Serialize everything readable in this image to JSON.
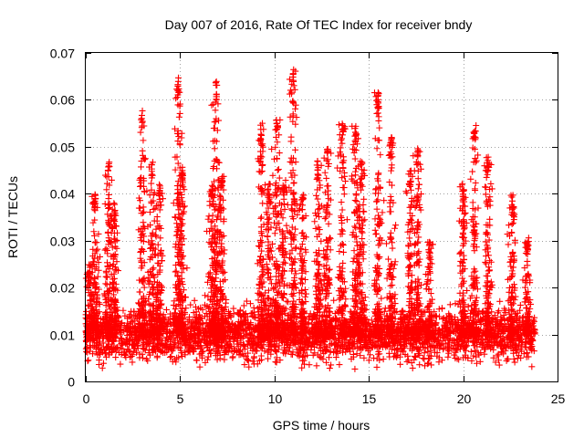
{
  "chart_data": {
    "type": "scatter",
    "title": "Day 007 of 2016, Rate Of TEC Index for receiver bndy",
    "xlabel": "GPS time / hours",
    "ylabel": "ROTI / TECUs",
    "xlim": [
      0,
      25
    ],
    "ylim": [
      0,
      0.07
    ],
    "xticks": [
      0,
      5,
      10,
      15,
      20,
      25
    ],
    "yticks": [
      0,
      0.01,
      0.02,
      0.03,
      0.04,
      0.05,
      0.06,
      0.07
    ],
    "xtick_labels": [
      "0",
      "5",
      "10",
      "15",
      "20",
      "25"
    ],
    "ytick_labels": [
      "0",
      "0.01",
      "0.02",
      "0.03",
      "0.04",
      "0.05",
      "0.06",
      "0.07"
    ],
    "grid": true,
    "marker": "+",
    "marker_color": "#ff0000",
    "series": [
      {
        "x_range": [
          0,
          23.8
        ],
        "baseline_band": [
          0.005,
          0.015
        ],
        "typical_value": 0.01,
        "spikes": [
          {
            "x": 0.2,
            "y": 0.025
          },
          {
            "x": 0.5,
            "y": 0.04
          },
          {
            "x": 1.2,
            "y": 0.047
          },
          {
            "x": 1.5,
            "y": 0.038
          },
          {
            "x": 3.0,
            "y": 0.058
          },
          {
            "x": 3.5,
            "y": 0.047
          },
          {
            "x": 3.9,
            "y": 0.042
          },
          {
            "x": 4.9,
            "y": 0.065
          },
          {
            "x": 5.1,
            "y": 0.047
          },
          {
            "x": 6.7,
            "y": 0.042
          },
          {
            "x": 6.9,
            "y": 0.064
          },
          {
            "x": 7.2,
            "y": 0.044
          },
          {
            "x": 9.3,
            "y": 0.054
          },
          {
            "x": 9.7,
            "y": 0.043
          },
          {
            "x": 10.1,
            "y": 0.056
          },
          {
            "x": 10.5,
            "y": 0.042
          },
          {
            "x": 11.0,
            "y": 0.067
          },
          {
            "x": 11.5,
            "y": 0.04
          },
          {
            "x": 12.3,
            "y": 0.047
          },
          {
            "x": 12.8,
            "y": 0.05
          },
          {
            "x": 13.6,
            "y": 0.055
          },
          {
            "x": 14.3,
            "y": 0.055
          },
          {
            "x": 14.6,
            "y": 0.047
          },
          {
            "x": 15.5,
            "y": 0.062
          },
          {
            "x": 16.2,
            "y": 0.052
          },
          {
            "x": 17.2,
            "y": 0.045
          },
          {
            "x": 17.6,
            "y": 0.05
          },
          {
            "x": 18.2,
            "y": 0.03
          },
          {
            "x": 20.0,
            "y": 0.042
          },
          {
            "x": 20.6,
            "y": 0.055
          },
          {
            "x": 21.3,
            "y": 0.048
          },
          {
            "x": 22.6,
            "y": 0.04
          },
          {
            "x": 23.4,
            "y": 0.03
          }
        ]
      }
    ]
  }
}
